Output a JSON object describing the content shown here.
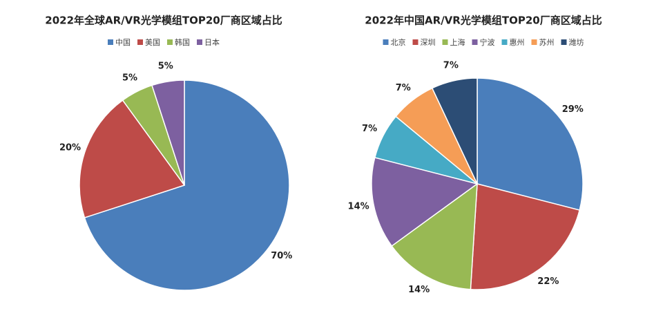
{
  "chart_data": [
    {
      "type": "pie",
      "title": "2022年全球AR/VR光学模组TOP20厂商区域占比",
      "categories": [
        "中国",
        "美国",
        "韩国",
        "日本"
      ],
      "values": [
        70,
        20,
        5,
        5
      ],
      "value_labels": [
        "70%",
        "20%",
        "5%",
        "5%"
      ],
      "colors": [
        "#4a7ebb",
        "#be4b48",
        "#98b954",
        "#7d60a0"
      ]
    },
    {
      "type": "pie",
      "title": "2022年中国AR/VR光学模组TOP20厂商区域占比",
      "categories": [
        "北京",
        "深圳",
        "上海",
        "宁波",
        "惠州",
        "苏州",
        "潍坊"
      ],
      "values": [
        29,
        22,
        14,
        14,
        7,
        7,
        7
      ],
      "value_labels": [
        "29%",
        "22%",
        "14%",
        "14%",
        "7%",
        "7%",
        "7%"
      ],
      "colors": [
        "#4a7ebb",
        "#be4b48",
        "#98b954",
        "#7d60a0",
        "#46aac5",
        "#f59d56",
        "#2c4d75"
      ]
    }
  ]
}
